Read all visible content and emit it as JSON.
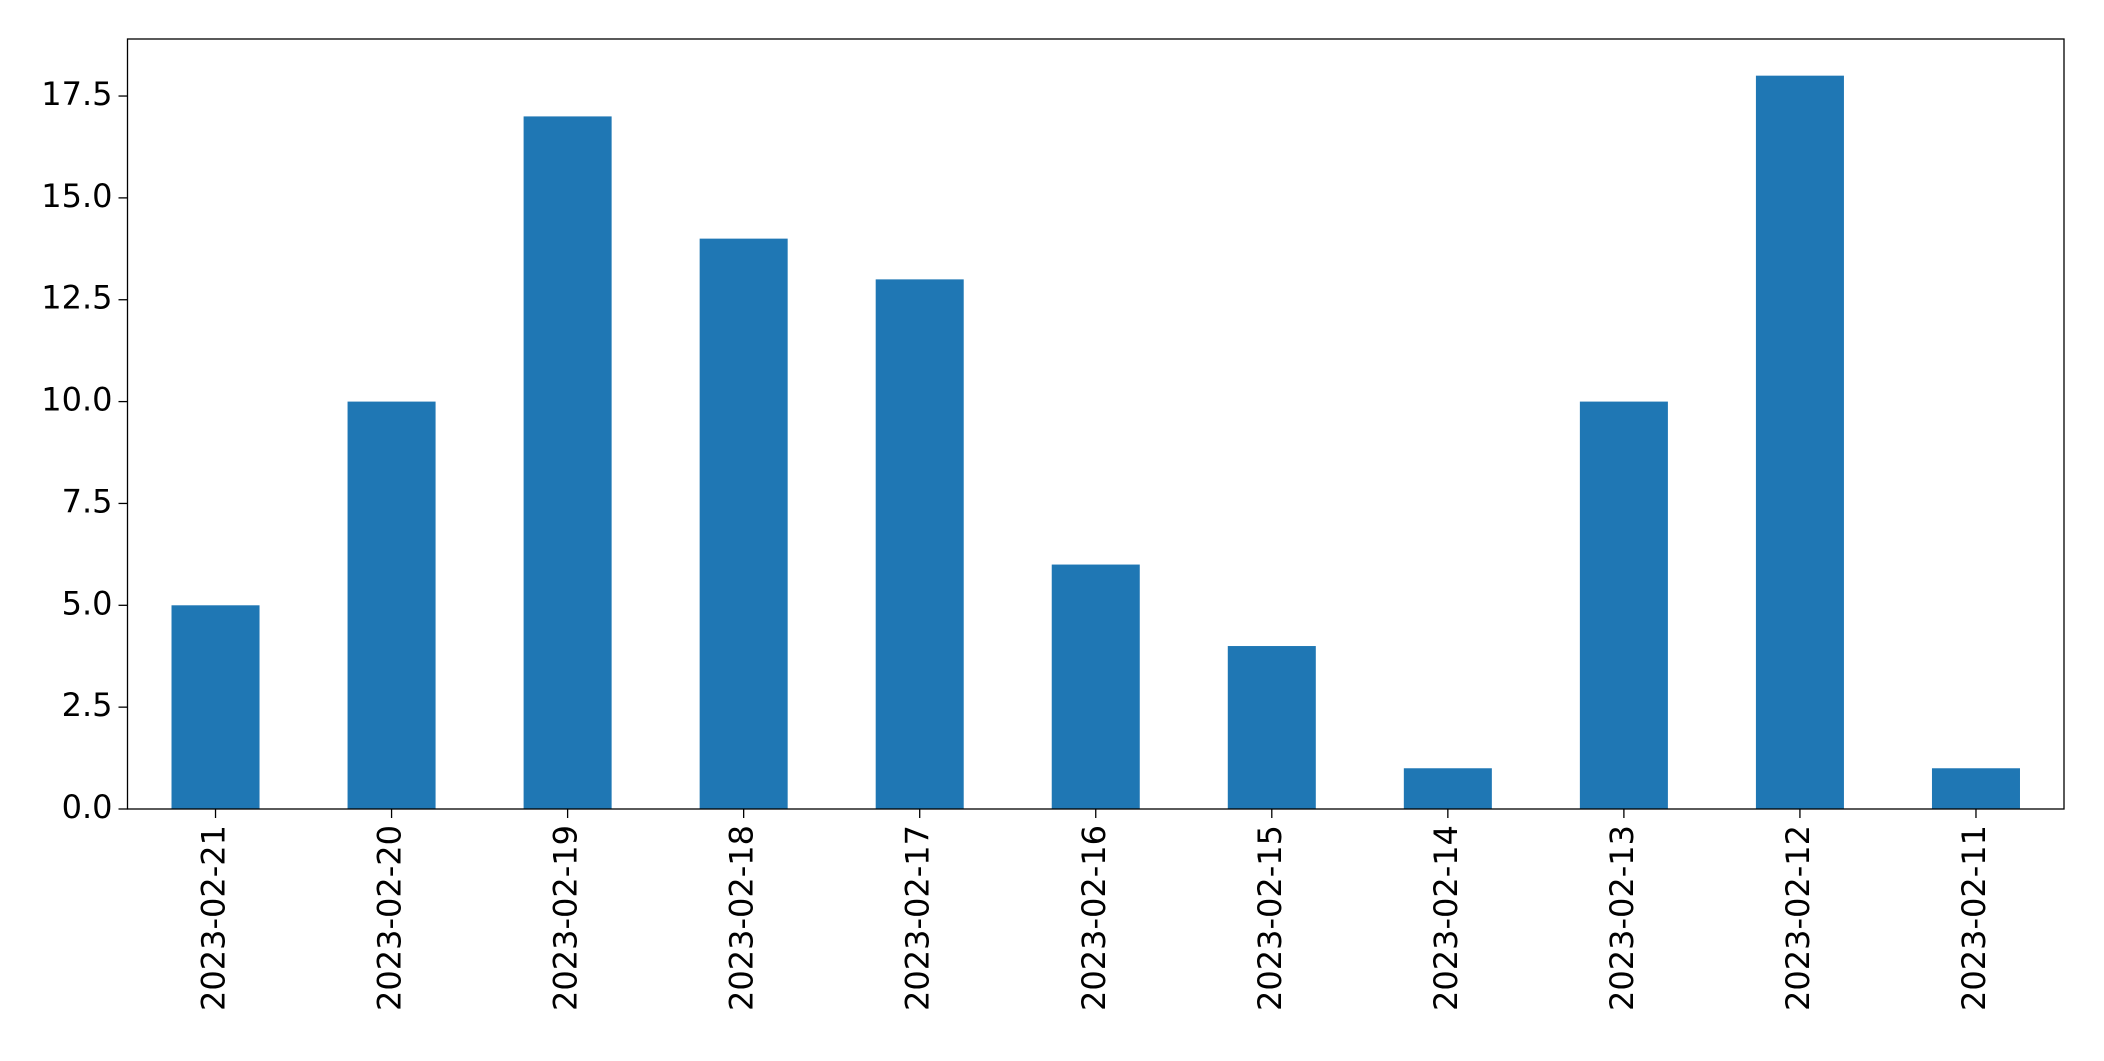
{
  "chart_data": {
    "type": "bar",
    "categories": [
      "2023-02-21",
      "2023-02-20",
      "2023-02-19",
      "2023-02-18",
      "2023-02-17",
      "2023-02-16",
      "2023-02-15",
      "2023-02-14",
      "2023-02-13",
      "2023-02-12",
      "2023-02-11"
    ],
    "values": [
      5,
      10,
      17,
      14,
      13,
      6,
      4,
      1,
      10,
      18,
      1
    ],
    "color": "#1f77b4",
    "ylim": [
      0,
      18.9
    ],
    "yticks": [
      {
        "value": 0,
        "label": "0.0"
      },
      {
        "value": 2.5,
        "label": "2.5"
      },
      {
        "value": 5,
        "label": "5.0"
      },
      {
        "value": 7.5,
        "label": "7.5"
      },
      {
        "value": 10,
        "label": "10.0"
      },
      {
        "value": 12.5,
        "label": "12.5"
      },
      {
        "value": 15,
        "label": "15.0"
      },
      {
        "value": 17.5,
        "label": "17.5"
      }
    ],
    "grid": false
  }
}
